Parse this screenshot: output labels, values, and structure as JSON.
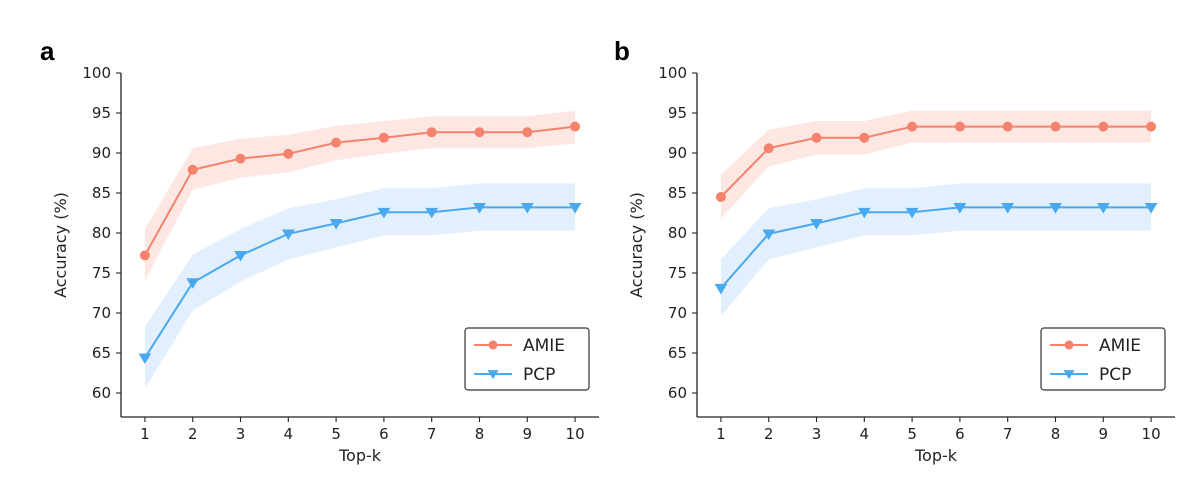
{
  "chart_data": [
    {
      "panel": "a",
      "type": "line",
      "xlabel": "Top-k",
      "ylabel": "Accuracy (%)",
      "x": [
        1,
        2,
        3,
        4,
        5,
        6,
        7,
        8,
        9,
        10
      ],
      "xticks": [
        "1",
        "2",
        "3",
        "4",
        "5",
        "6",
        "7",
        "8",
        "9",
        "10"
      ],
      "yticks": [
        "60",
        "65",
        "70",
        "75",
        "80",
        "85",
        "90",
        "95",
        "100"
      ],
      "xlim": [
        0.5,
        10.5
      ],
      "ylim": [
        57,
        100
      ],
      "legend_position": "bottom-right",
      "series": [
        {
          "name": "AMIE",
          "color": "#f4826d",
          "band_color": "#fde3de",
          "marker": "circle",
          "values": [
            77.2,
            87.9,
            89.3,
            89.9,
            91.3,
            91.9,
            92.6,
            92.6,
            92.6,
            93.3
          ],
          "lower": [
            74.0,
            85.4,
            86.9,
            87.6,
            89.1,
            89.9,
            90.6,
            90.6,
            90.6,
            91.2
          ],
          "upper": [
            80.5,
            90.6,
            91.8,
            92.3,
            93.4,
            94.0,
            94.6,
            94.6,
            94.6,
            95.3
          ]
        },
        {
          "name": "PCP",
          "color": "#4aa8ef",
          "band_color": "#dcedfc",
          "marker": "triangle-down",
          "values": [
            64.4,
            73.8,
            77.2,
            79.9,
            81.2,
            82.6,
            82.6,
            83.2,
            83.2,
            83.2
          ],
          "lower": [
            60.5,
            70.3,
            73.9,
            76.7,
            78.2,
            79.7,
            79.7,
            80.3,
            80.3,
            80.3
          ],
          "upper": [
            68.3,
            77.3,
            80.5,
            83.1,
            84.2,
            85.6,
            85.6,
            86.2,
            86.2,
            86.2
          ]
        }
      ]
    },
    {
      "panel": "b",
      "type": "line",
      "xlabel": "Top-k",
      "ylabel": "Accuracy (%)",
      "x": [
        1,
        2,
        3,
        4,
        5,
        6,
        7,
        8,
        9,
        10
      ],
      "xticks": [
        "1",
        "2",
        "3",
        "4",
        "5",
        "6",
        "7",
        "8",
        "9",
        "10"
      ],
      "yticks": [
        "60",
        "65",
        "70",
        "75",
        "80",
        "85",
        "90",
        "95",
        "100"
      ],
      "xlim": [
        0.5,
        10.5
      ],
      "ylim": [
        57,
        100
      ],
      "legend_position": "bottom-right",
      "series": [
        {
          "name": "AMIE",
          "color": "#f4826d",
          "band_color": "#fde3de",
          "marker": "circle",
          "values": [
            84.5,
            90.6,
            91.9,
            91.9,
            93.3,
            93.3,
            93.3,
            93.3,
            93.3,
            93.3
          ],
          "lower": [
            81.8,
            88.3,
            89.8,
            89.8,
            91.3,
            91.3,
            91.3,
            91.3,
            91.3,
            91.3
          ],
          "upper": [
            87.3,
            92.9,
            94.0,
            94.0,
            95.3,
            95.3,
            95.3,
            95.3,
            95.3,
            95.3
          ]
        },
        {
          "name": "PCP",
          "color": "#4aa8ef",
          "band_color": "#dcedfc",
          "marker": "triangle-down",
          "values": [
            73.1,
            79.9,
            81.2,
            82.6,
            82.6,
            83.2,
            83.2,
            83.2,
            83.2,
            83.2
          ],
          "lower": [
            69.6,
            76.7,
            78.2,
            79.7,
            79.7,
            80.3,
            80.3,
            80.3,
            80.3,
            80.3
          ],
          "upper": [
            76.7,
            83.1,
            84.2,
            85.6,
            85.6,
            86.2,
            86.2,
            86.2,
            86.2,
            86.2
          ]
        }
      ]
    }
  ]
}
